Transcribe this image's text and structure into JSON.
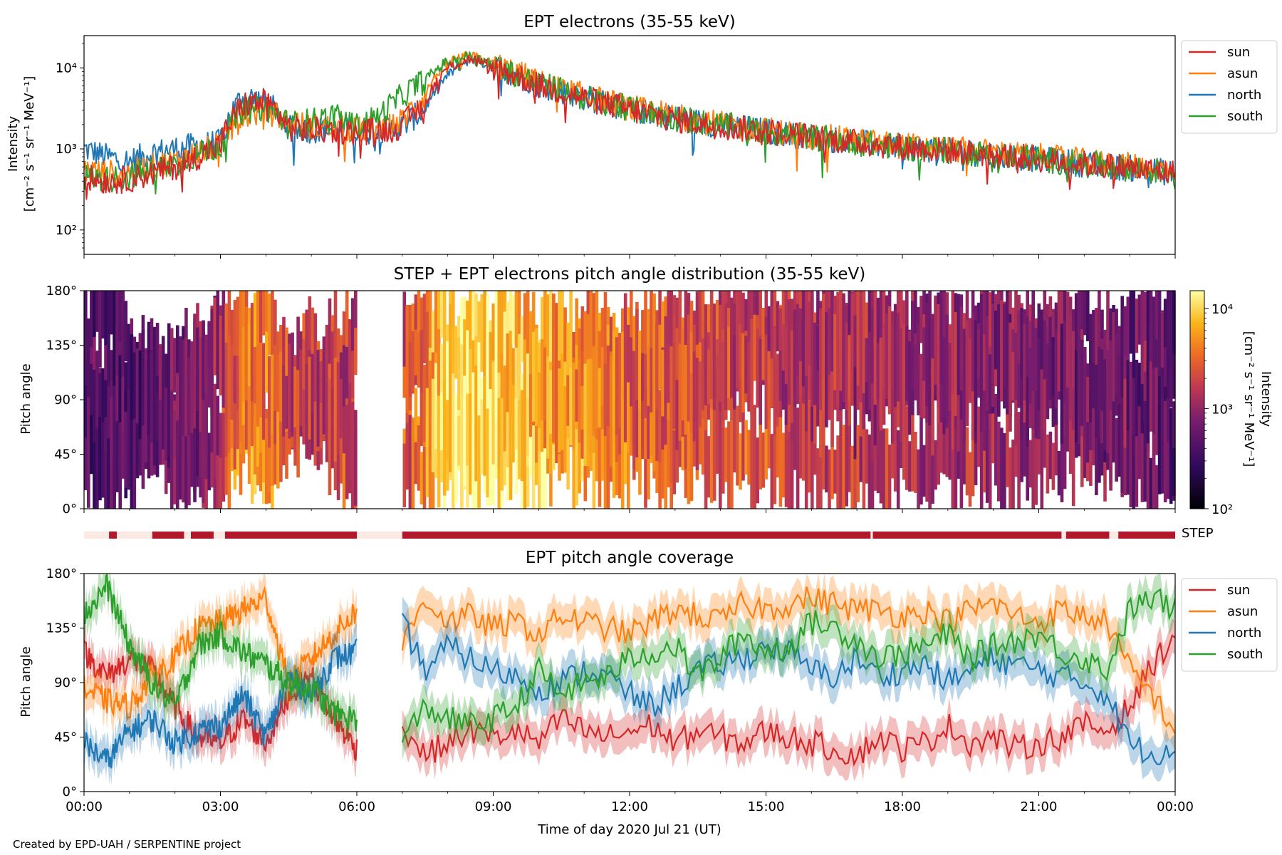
{
  "chart_data": [
    {
      "type": "line",
      "title": "EPT electrons (35-55 keV)",
      "ylabel_line1": "Intensity",
      "ylabel_line2": "[cm⁻² s⁻¹ sr⁻¹ MeV⁻¹]",
      "yscale": "log",
      "ylim": [
        50,
        25000
      ],
      "yticks": [
        {
          "value": 100,
          "label": "10²"
        },
        {
          "value": 1000,
          "label": "10³"
        },
        {
          "value": 10000,
          "label": "10⁴"
        }
      ],
      "xlim_hours": [
        0,
        24
      ],
      "legend_position": "outside-right",
      "x_hours": [
        0,
        0.5,
        1,
        1.5,
        2,
        2.5,
        3,
        3.5,
        4,
        4.5,
        5,
        5.5,
        6,
        6.5,
        7,
        7.5,
        8,
        8.5,
        9,
        10,
        11,
        12,
        13,
        14,
        15,
        16,
        17,
        18,
        19,
        20,
        21,
        22,
        23,
        24
      ],
      "series": [
        {
          "name": "sun",
          "color": "#d62728",
          "values": [
            450,
            400,
            420,
            500,
            600,
            800,
            1100,
            3500,
            3800,
            1800,
            1700,
            1700,
            1600,
            1700,
            1900,
            3500,
            10000,
            13000,
            10000,
            6000,
            4200,
            3000,
            2300,
            1900,
            1650,
            1400,
            1200,
            1050,
            950,
            850,
            750,
            650,
            580,
            500
          ]
        },
        {
          "name": "asun",
          "color": "#ff7f0e",
          "values": [
            550,
            500,
            520,
            600,
            700,
            900,
            1100,
            2500,
            3000,
            2100,
            1900,
            1800,
            1700,
            1800,
            2200,
            4500,
            12000,
            14000,
            11000,
            6500,
            4500,
            3200,
            2500,
            2000,
            1700,
            1450,
            1250,
            1100,
            1000,
            900,
            800,
            700,
            620,
            550
          ]
        },
        {
          "name": "north",
          "color": "#1f77b4",
          "values": [
            1000,
            800,
            700,
            900,
            1000,
            1100,
            1200,
            4500,
            3800,
            1800,
            1700,
            1800,
            1600,
            1700,
            1900,
            3000,
            8000,
            13000,
            10500,
            6200,
            4300,
            3100,
            2400,
            1950,
            1650,
            1400,
            1200,
            1050,
            950,
            850,
            750,
            650,
            580,
            500
          ]
        },
        {
          "name": "south",
          "color": "#2ca02c",
          "values": [
            450,
            420,
            450,
            550,
            650,
            850,
            1100,
            3000,
            3200,
            2000,
            2200,
            2500,
            1900,
            2500,
            4500,
            7000,
            12000,
            14000,
            10500,
            6200,
            4300,
            3100,
            2400,
            1950,
            1650,
            1400,
            1200,
            1050,
            950,
            850,
            750,
            650,
            580,
            500
          ]
        }
      ]
    },
    {
      "type": "heatmap",
      "title": "STEP + EPT electrons pitch angle distribution (35-55 keV)",
      "ylabel": "Pitch angle",
      "yticks": [
        "0°",
        "45°",
        "90°",
        "135°",
        "180°"
      ],
      "ylim_deg": [
        0,
        180
      ],
      "colorscale": "inferno-like",
      "colorbar_label": "Intensity",
      "colorbar_units": "[cm⁻² s⁻¹ sr⁻¹ MeV⁻¹]",
      "colorbar_ticks": [
        {
          "value": 100,
          "label": "10²"
        },
        {
          "value": 1000,
          "label": "10³"
        },
        {
          "value": 10000,
          "label": "10⁴"
        }
      ],
      "colorbar_range": [
        100,
        15000
      ],
      "data_gap_hours": [
        6.0,
        7.0
      ]
    },
    {
      "type": "bar",
      "label": "STEP",
      "active_segments_hours": [
        [
          0.55,
          0.72
        ],
        [
          1.5,
          2.2
        ],
        [
          2.35,
          2.85
        ],
        [
          3.1,
          6.0
        ],
        [
          7.0,
          17.3
        ],
        [
          17.35,
          21.5
        ],
        [
          21.6,
          22.55
        ],
        [
          22.75,
          24.0
        ]
      ],
      "active_color": "#b2182b",
      "inactive_color": "#fde9e3"
    },
    {
      "type": "line",
      "title": "EPT pitch angle coverage",
      "ylabel": "Pitch angle",
      "xlabel": "Time of day 2020 Jul 21 (UT)",
      "xticks": [
        "00:00",
        "03:00",
        "06:00",
        "09:00",
        "12:00",
        "15:00",
        "18:00",
        "21:00",
        "00:00"
      ],
      "yticks": [
        "0°",
        "45°",
        "90°",
        "135°",
        "180°"
      ],
      "ylim_deg": [
        0,
        180
      ],
      "data_gap_hours": [
        6.0,
        7.0
      ],
      "legend_position": "outside-right",
      "x_hours": [
        0,
        0.5,
        1,
        1.5,
        2,
        2.5,
        3,
        3.5,
        4,
        4.5,
        5,
        5.5,
        6,
        7,
        7.5,
        8,
        8.5,
        9,
        9.5,
        10,
        10.5,
        11,
        11.5,
        12,
        12.5,
        13,
        13.5,
        14,
        14.5,
        15,
        15.5,
        16,
        16.5,
        17,
        17.5,
        18,
        18.5,
        19,
        19.5,
        20,
        20.5,
        21,
        21.5,
        22,
        22.5,
        23,
        23.5,
        24
      ],
      "series": [
        {
          "name": "sun",
          "color": "#d62728",
          "values": [
            115,
            95,
            110,
            100,
            70,
            45,
            40,
            60,
            40,
            80,
            95,
            60,
            35,
            55,
            30,
            40,
            50,
            45,
            50,
            40,
            60,
            50,
            45,
            50,
            55,
            40,
            50,
            45,
            40,
            50,
            45,
            40,
            35,
            30,
            45,
            35,
            40,
            55,
            40,
            45,
            35,
            40,
            45,
            55,
            50,
            70,
            105,
            130
          ]
        },
        {
          "name": "asun",
          "color": "#ff7f0e",
          "values": [
            85,
            75,
            70,
            95,
            110,
            135,
            140,
            150,
            160,
            90,
            110,
            130,
            150,
            120,
            160,
            140,
            145,
            135,
            140,
            130,
            145,
            140,
            135,
            130,
            140,
            150,
            145,
            140,
            155,
            150,
            155,
            160,
            155,
            150,
            150,
            145,
            150,
            140,
            150,
            155,
            145,
            140,
            150,
            145,
            140,
            100,
            80,
            50
          ]
        },
        {
          "name": "north",
          "color": "#1f77b4",
          "values": [
            40,
            25,
            50,
            60,
            40,
            50,
            55,
            80,
            45,
            95,
            80,
            110,
            115,
            140,
            100,
            120,
            110,
            100,
            95,
            85,
            90,
            100,
            95,
            80,
            70,
            85,
            100,
            105,
            110,
            120,
            115,
            100,
            95,
            110,
            95,
            100,
            105,
            90,
            100,
            110,
            105,
            100,
            95,
            90,
            80,
            40,
            30,
            40
          ]
        },
        {
          "name": "south",
          "color": "#2ca02c",
          "values": [
            145,
            170,
            120,
            90,
            70,
            120,
            130,
            115,
            105,
            90,
            85,
            65,
            60,
            40,
            70,
            60,
            55,
            60,
            70,
            100,
            80,
            90,
            95,
            110,
            115,
            120,
            95,
            110,
            130,
            115,
            120,
            140,
            135,
            125,
            110,
            115,
            120,
            130,
            110,
            120,
            125,
            130,
            115,
            110,
            100,
            150,
            160,
            150
          ]
        }
      ]
    }
  ],
  "credit": "Created by EPD-UAH / SERPENTINE project"
}
